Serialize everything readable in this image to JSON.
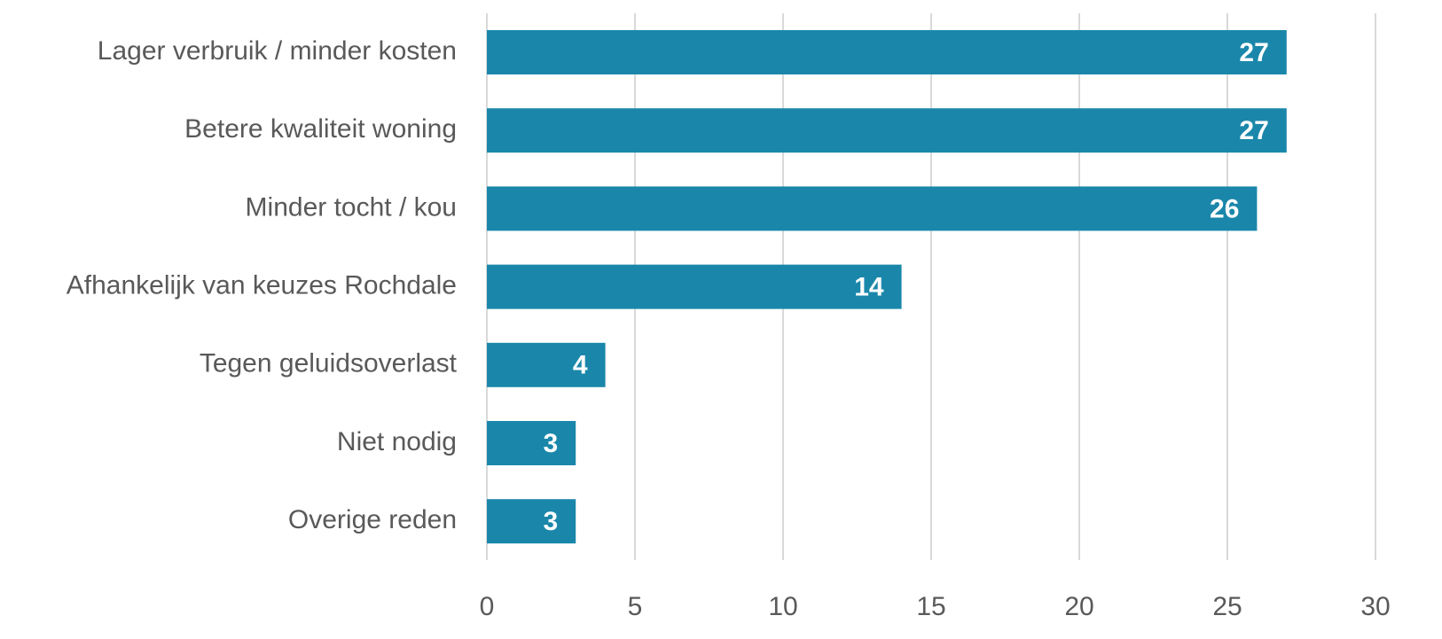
{
  "chart_data": {
    "type": "bar",
    "orientation": "horizontal",
    "categories": [
      "Lager verbruik / minder kosten",
      "Betere kwaliteit woning",
      "Minder tocht / kou",
      "Afhankelijk van keuzes Rochdale",
      "Tegen geluidsoverlast",
      "Niet nodig",
      "Overige reden"
    ],
    "values": [
      27,
      27,
      26,
      14,
      4,
      3,
      3
    ],
    "color": "#1a87aa",
    "xlim": [
      0,
      30
    ],
    "xticks": [
      0,
      5,
      10,
      15,
      20,
      25,
      30
    ],
    "grid": true
  }
}
